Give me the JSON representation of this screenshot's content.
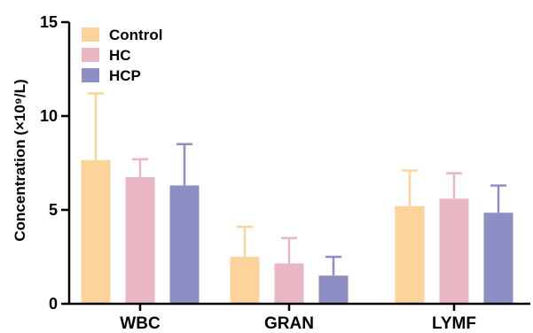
{
  "chart_data": {
    "type": "bar",
    "ylabel": "Concentration (×10⁹/L)",
    "ylim": [
      0,
      15
    ],
    "yticks": [
      0,
      5,
      10,
      15
    ],
    "categories": [
      "WBC",
      "GRAN",
      "LYMF"
    ],
    "legend_position": "top-left",
    "grid": false,
    "series": [
      {
        "name": "Control",
        "color": "#fdd39c",
        "values": [
          7.65,
          2.5,
          5.2
        ],
        "error": [
          3.55,
          1.6,
          1.9
        ]
      },
      {
        "name": "HC",
        "color": "#e8b7c3",
        "values": [
          6.75,
          2.15,
          5.6
        ],
        "error": [
          0.95,
          1.35,
          1.35
        ]
      },
      {
        "name": "HCP",
        "color": "#8d8ec4",
        "values": [
          6.3,
          1.5,
          4.85
        ],
        "error": [
          2.2,
          1.0,
          1.45
        ]
      }
    ]
  }
}
